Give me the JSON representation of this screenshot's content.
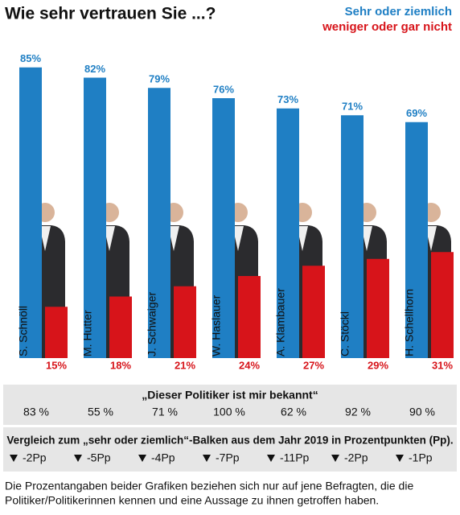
{
  "chart_data": {
    "type": "bar",
    "title": "Wie sehr vertrauen Sie ...?",
    "categories": [
      "S. Schnöll",
      "M. Hutter",
      "J. Schwaiger",
      "W. Haslauer",
      "A. Klambauer",
      "C. Stöckl",
      "H. Schellhorn"
    ],
    "series": [
      {
        "name": "Sehr oder ziemlich",
        "color": "#1f7fc4",
        "values": [
          85,
          82,
          79,
          76,
          73,
          71,
          69
        ],
        "value_labels": [
          "85%",
          "82%",
          "79%",
          "76%",
          "73%",
          "71%",
          "69%"
        ]
      },
      {
        "name": "weniger oder gar nicht",
        "color": "#d7141a",
        "values": [
          15,
          18,
          21,
          24,
          27,
          29,
          31
        ],
        "value_labels": [
          "15%",
          "18%",
          "21%",
          "24%",
          "27%",
          "29%",
          "31%"
        ]
      }
    ],
    "ylim": [
      0,
      100
    ]
  },
  "known": {
    "title": "„Dieser Politiker ist mir bekannt“",
    "values": [
      "83 %",
      "55 %",
      "71 %",
      "100 %",
      "62 %",
      "92 %",
      "90 %"
    ]
  },
  "comparison": {
    "title": "Vergleich zum „sehr oder ziemlich“-Balken aus dem Jahr 2019 in Prozentpunkten (Pp).",
    "values": [
      "-2Pp",
      "-5Pp",
      "-4Pp",
      "-7Pp",
      "-11Pp",
      "-2Pp",
      "-1Pp"
    ]
  },
  "footnote": [
    "Die Prozentangaben beider Grafiken beziehen sich nur auf jene Befragten, die die",
    "Politiker/Politikerinnen kennen und eine Aussage zu ihnen getroffen haben."
  ]
}
